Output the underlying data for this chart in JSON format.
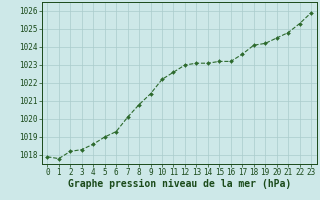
{
  "x": [
    0,
    1,
    2,
    3,
    4,
    5,
    6,
    7,
    8,
    9,
    10,
    11,
    12,
    13,
    14,
    15,
    16,
    17,
    18,
    19,
    20,
    21,
    22,
    23
  ],
  "y": [
    1017.9,
    1017.8,
    1018.2,
    1018.3,
    1018.6,
    1019.0,
    1019.3,
    1020.1,
    1020.8,
    1021.4,
    1022.2,
    1022.6,
    1023.0,
    1023.1,
    1023.1,
    1023.2,
    1023.2,
    1023.6,
    1024.1,
    1024.2,
    1024.5,
    1024.8,
    1025.3,
    1025.9
  ],
  "line_color": "#2d6a2d",
  "marker_color": "#2d6a2d",
  "bg_color": "#cde8e8",
  "grid_color": "#aacccc",
  "xlabel": "Graphe pression niveau de la mer (hPa)",
  "xlabel_color": "#1a4a1a",
  "tick_color": "#1a4a1a",
  "ylim_min": 1017.5,
  "ylim_max": 1026.5,
  "xlim_min": -0.5,
  "xlim_max": 23.5,
  "yticks": [
    1018,
    1019,
    1020,
    1021,
    1022,
    1023,
    1024,
    1025,
    1026
  ],
  "xticks": [
    0,
    1,
    2,
    3,
    4,
    5,
    6,
    7,
    8,
    9,
    10,
    11,
    12,
    13,
    14,
    15,
    16,
    17,
    18,
    19,
    20,
    21,
    22,
    23
  ],
  "fontsize_ticks": 5.5,
  "fontsize_xlabel": 7.0
}
